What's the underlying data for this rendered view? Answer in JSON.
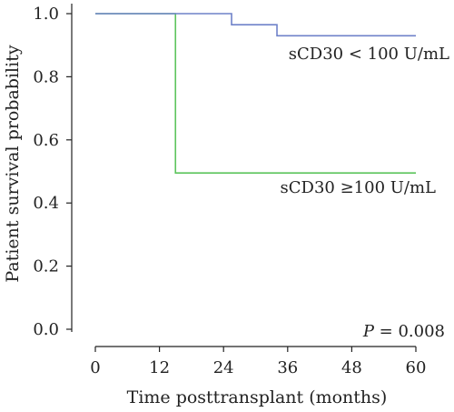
{
  "chart_data": {
    "type": "line",
    "xlabel": "Time posttransplant (months)",
    "ylabel": "Patient survival probability",
    "xlim": [
      0,
      60
    ],
    "ylim": [
      0,
      1
    ],
    "xticks": [
      0,
      12,
      24,
      36,
      48,
      60
    ],
    "yticks": [
      0.0,
      0.2,
      0.4,
      0.6,
      0.8,
      1.0
    ],
    "xtick_labels": [
      "0",
      "12",
      "24",
      "36",
      "48",
      "60"
    ],
    "ytick_labels": [
      "0.0",
      "0.2",
      "0.4",
      "0.6",
      "0.8",
      "1.0"
    ],
    "grid": false,
    "step": true,
    "series": [
      {
        "name": "sCD30 < 100 U/mL",
        "color": "#6f82c9",
        "x": [
          0,
          25.5,
          34,
          60
        ],
        "y": [
          1.0,
          0.965,
          0.93,
          0.93
        ]
      },
      {
        "name": "sCD30 ≥100 U/mL",
        "color": "#5cc45c",
        "x": [
          0,
          15,
          60
        ],
        "y": [
          1.0,
          0.495,
          0.495
        ]
      }
    ],
    "annotations": {
      "p_prefix": "P",
      "p_rest": " = 0.008"
    }
  }
}
